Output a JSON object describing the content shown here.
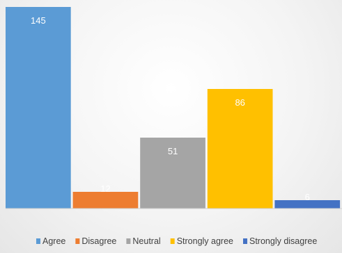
{
  "chart_data": {
    "type": "bar",
    "categories": [
      "Agree",
      "Disagree",
      "Neutral",
      "Strongly agree",
      "Strongly disagree"
    ],
    "values": [
      145,
      12,
      51,
      86,
      6
    ],
    "colors": [
      "#5b9bd5",
      "#ed7d31",
      "#a5a5a5",
      "#ffc000",
      "#4472c4"
    ],
    "ylim": [
      0,
      145
    ],
    "grid": false,
    "legend": "bottom",
    "data_labels": true
  }
}
